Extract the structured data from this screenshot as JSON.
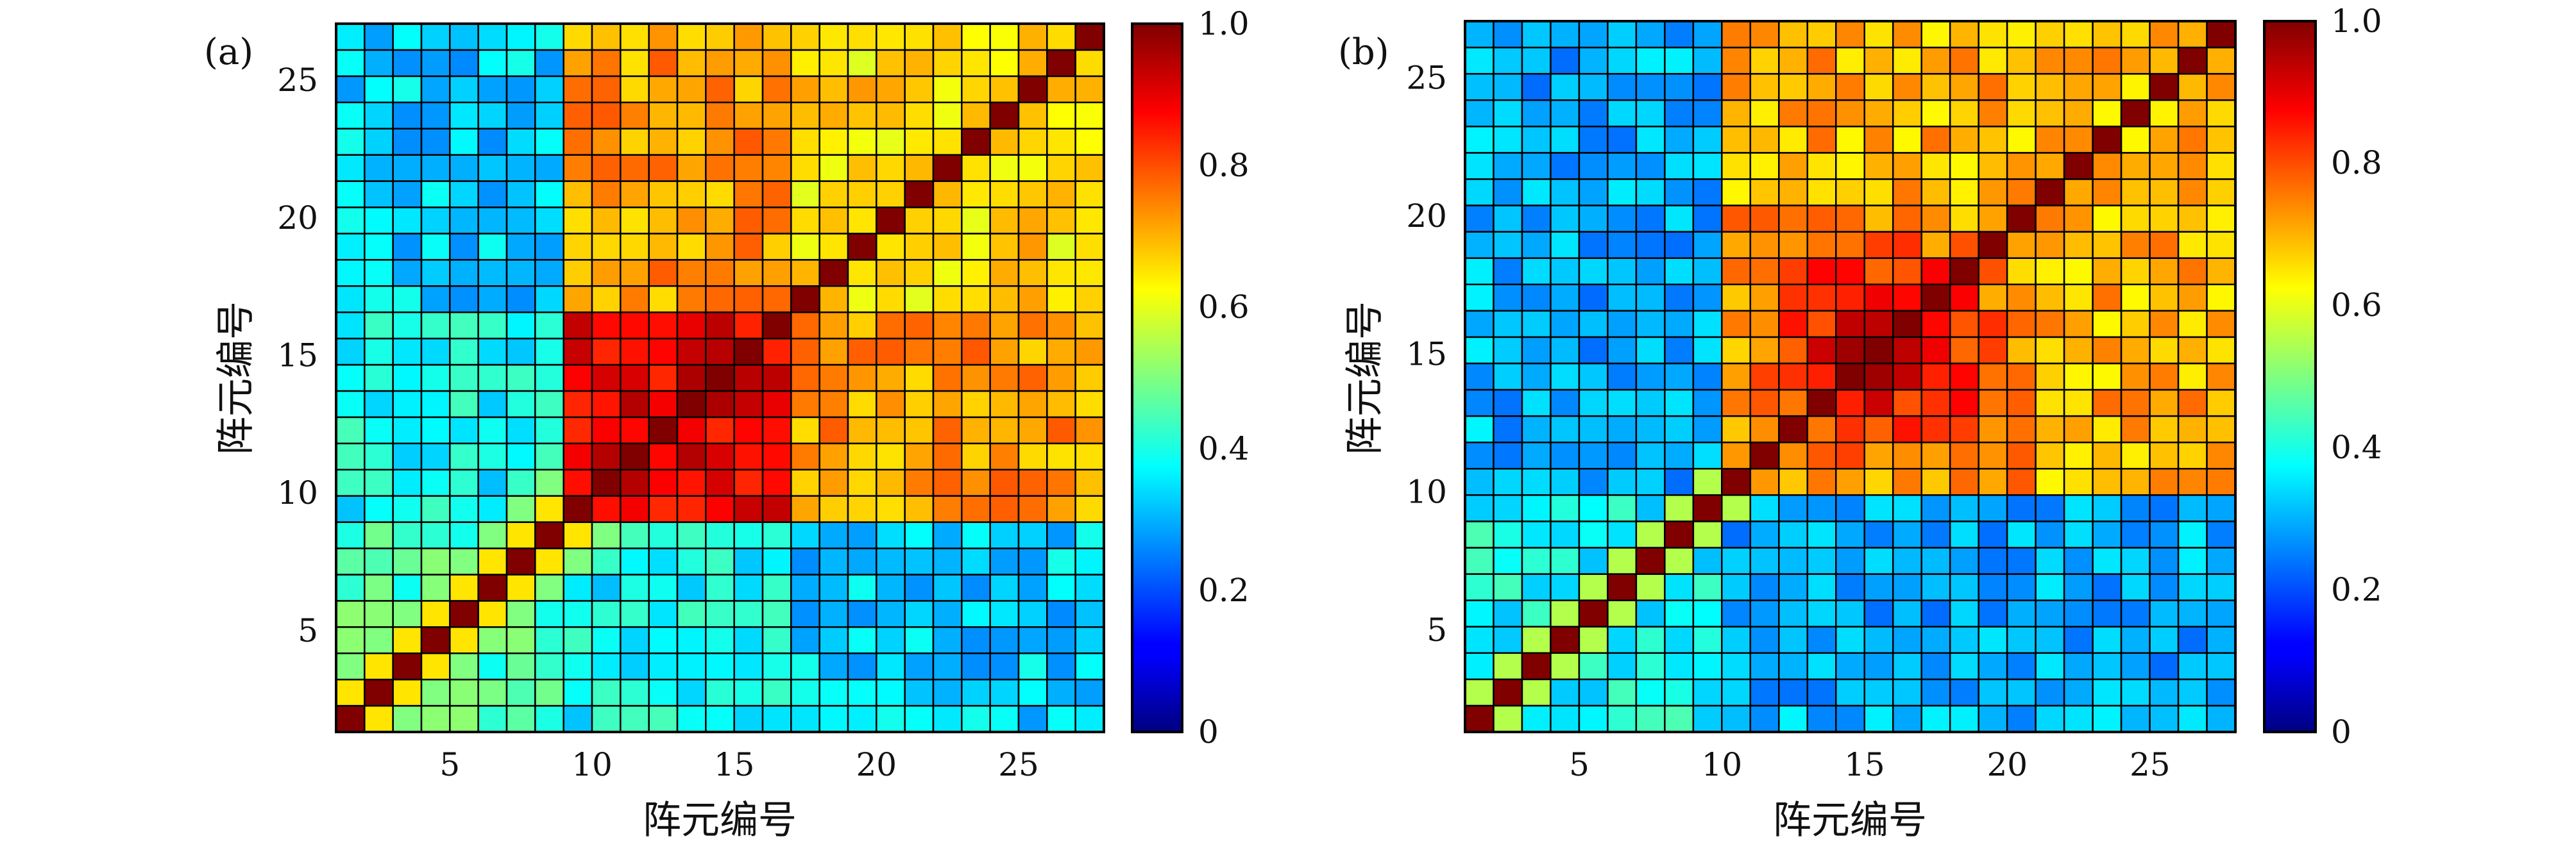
{
  "figure": {
    "panels": [
      {
        "label": "(a)",
        "xlabel": "阵元编号",
        "ylabel": "阵元编号",
        "xticks": [
          "5",
          "10",
          "15",
          "20",
          "25"
        ],
        "yticks": [
          "5",
          "10",
          "15",
          "20",
          "25"
        ],
        "colorbar_ticks": [
          "0",
          "0.2",
          "0.4",
          "0.6",
          "0.8",
          "1.0"
        ]
      },
      {
        "label": "(b)",
        "xlabel": "阵元编号",
        "ylabel": "阵元编号",
        "xticks": [
          "5",
          "10",
          "15",
          "20",
          "25"
        ],
        "yticks": [
          "5",
          "10",
          "15",
          "20",
          "25"
        ],
        "colorbar_ticks": [
          "0",
          "0.2",
          "0.4",
          "0.6",
          "0.8",
          "1.0"
        ]
      }
    ]
  },
  "chart_data": [
    {
      "type": "heatmap",
      "panel": "(a)",
      "xlabel": "阵元编号",
      "ylabel": "阵元编号",
      "xlim": [
        0.5,
        27.5
      ],
      "ylim": [
        0.5,
        27.5
      ],
      "x_ticks": [
        5,
        10,
        15,
        20,
        25
      ],
      "y_ticks": [
        5,
        10,
        15,
        20,
        25
      ],
      "colormap": "jet",
      "clim": [
        0,
        1
      ],
      "colorbar_ticks": [
        0,
        0.2,
        0.4,
        0.6,
        0.8,
        1.0
      ],
      "size": 27,
      "index_base": 1,
      "diagonal_value": 1.0,
      "element_groups": [
        {
          "elements": [
            1,
            8
          ],
          "id": "A"
        },
        {
          "elements": [
            9,
            16
          ],
          "id": "B"
        },
        {
          "elements": [
            17,
            27
          ],
          "id": "C"
        }
      ],
      "block_values": {
        "A-A": 0.45,
        "A-B": 0.38,
        "A-C": 0.33,
        "B-B": 0.9,
        "B-C": 0.72,
        "C-C": 0.66
      },
      "near_diagonal_values": {
        "offset_1": 0.65,
        "offset_2": 0.5
      }
    },
    {
      "type": "heatmap",
      "panel": "(b)",
      "xlabel": "阵元编号",
      "ylabel": "阵元编号",
      "xlim": [
        0.5,
        27.5
      ],
      "ylim": [
        0.5,
        27.5
      ],
      "x_ticks": [
        5,
        10,
        15,
        20,
        25
      ],
      "y_ticks": [
        5,
        10,
        15,
        20,
        25
      ],
      "colormap": "jet",
      "clim": [
        0,
        1
      ],
      "colorbar_ticks": [
        0,
        0.2,
        0.4,
        0.6,
        0.8,
        1.0
      ],
      "size": 27,
      "index_base": 1,
      "diagonal_value": 1.0,
      "element_groups": [
        {
          "elements": [
            1,
            9
          ],
          "id": "A"
        },
        {
          "elements": [
            10,
            27
          ],
          "id": "B"
        }
      ],
      "block_values": {
        "A-A": 0.38,
        "A-B": 0.3,
        "B-B": 0.7
      },
      "center_peak": {
        "element": 15,
        "value": 0.95,
        "falloff_per_step": 0.045
      },
      "near_diagonal_values": {
        "offset_1": 0.55
      }
    }
  ]
}
